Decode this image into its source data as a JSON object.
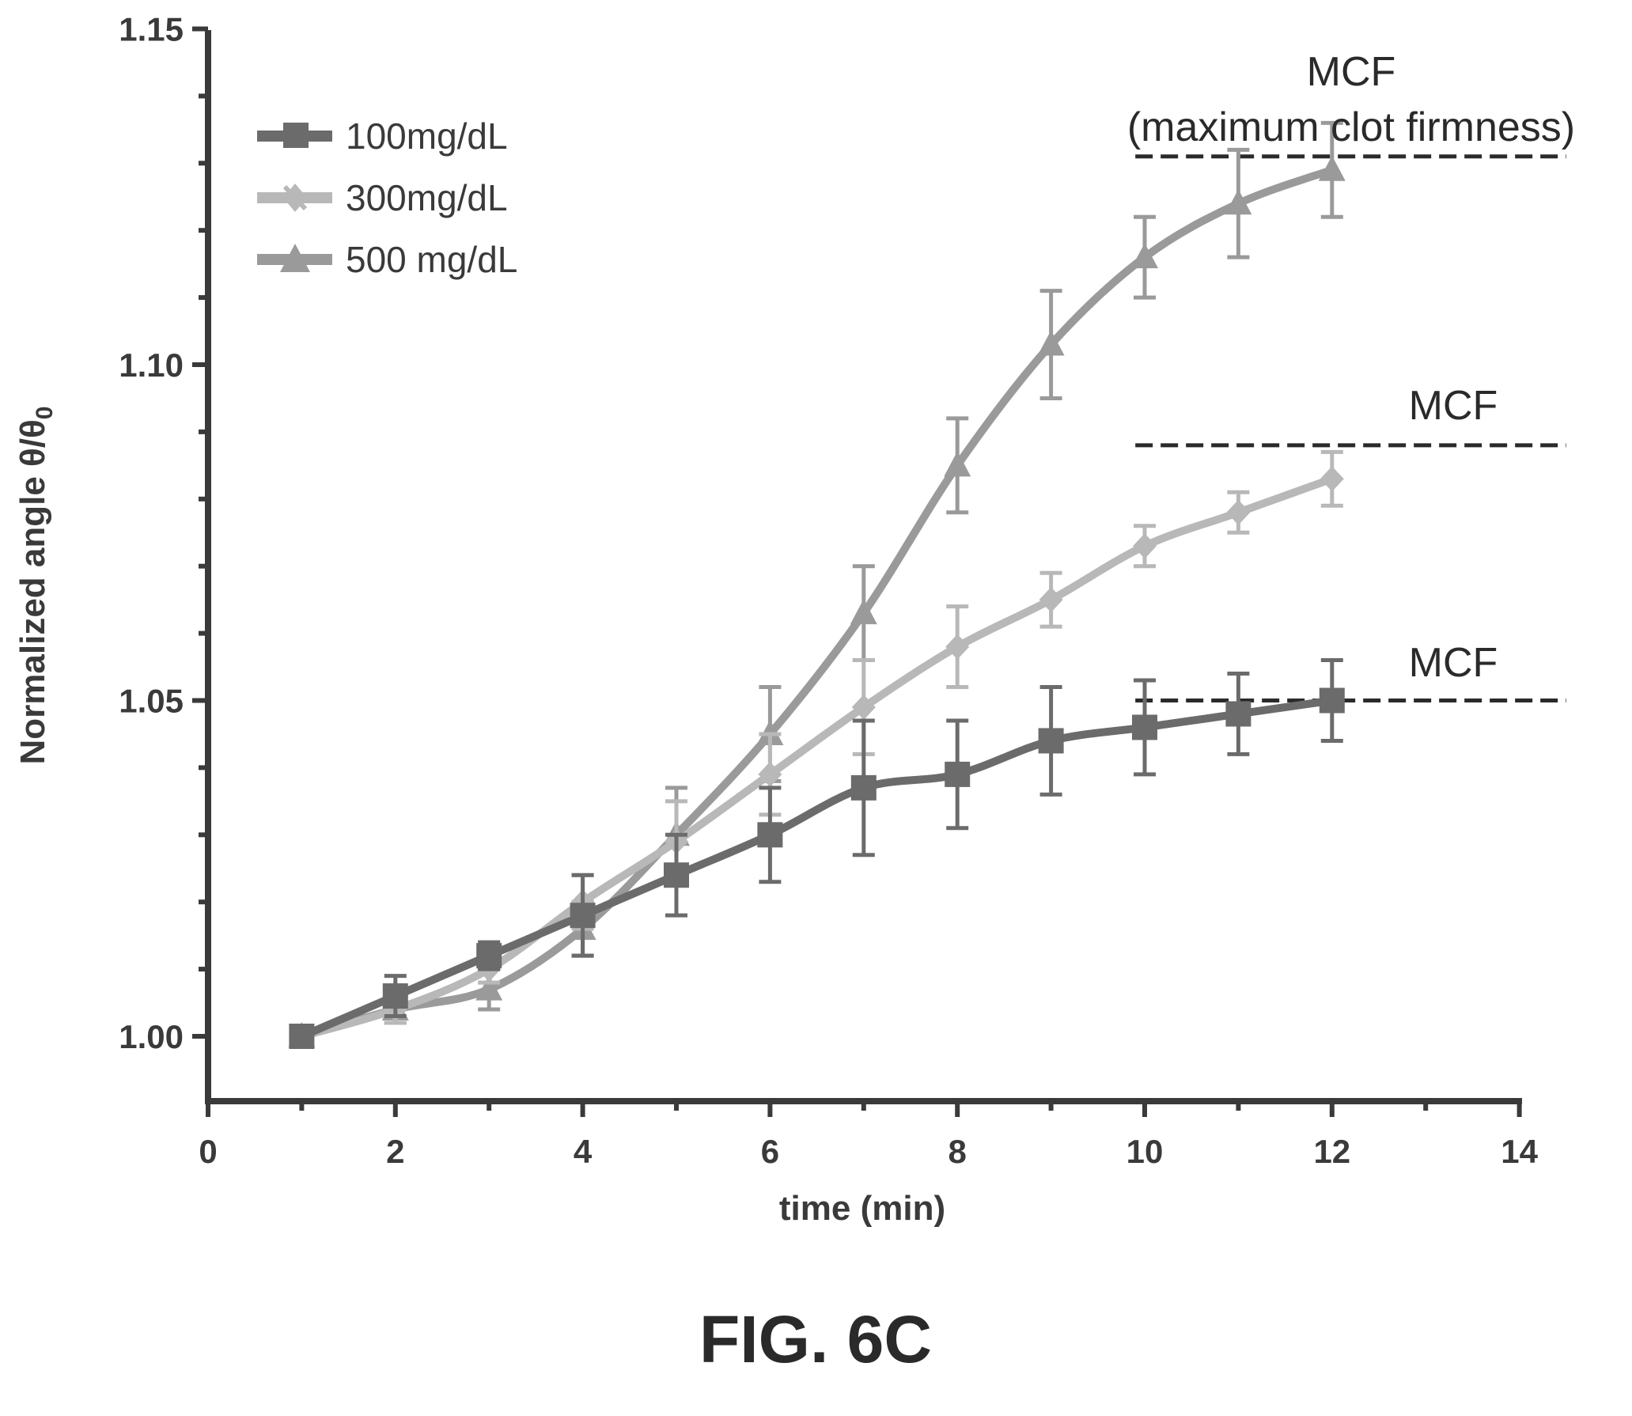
{
  "chart_data": {
    "type": "line",
    "xlabel": "time (min)",
    "ylabel_prefix": "Normalized angle θ/θ",
    "ylabel_subscript": "0",
    "xlim": [
      0,
      14
    ],
    "ylim": [
      0.99,
      1.15
    ],
    "x_ticks": [
      0,
      2,
      4,
      6,
      8,
      10,
      12,
      14
    ],
    "x_tick_labels": [
      "0",
      "2",
      "4",
      "6",
      "8",
      "10",
      "12",
      "14"
    ],
    "y_ticks": [
      1.0,
      1.05,
      1.1,
      1.15
    ],
    "y_tick_labels": [
      "1.00",
      "1.05",
      "1.10",
      "1.15"
    ],
    "grid": false,
    "legend_position": "top-left",
    "series": [
      {
        "name": "100mg/dL",
        "color": "#6b6b6b",
        "marker": "square",
        "x": [
          1,
          2,
          3,
          4,
          5,
          6,
          7,
          8,
          9,
          10,
          11,
          12
        ],
        "y": [
          1.0,
          1.006,
          1.012,
          1.018,
          1.024,
          1.03,
          1.037,
          1.039,
          1.044,
          1.046,
          1.048,
          1.05
        ],
        "err": [
          0.001,
          0.003,
          0.002,
          0.006,
          0.006,
          0.007,
          0.01,
          0.008,
          0.008,
          0.007,
          0.006,
          0.006
        ]
      },
      {
        "name": "300mg/dL",
        "color": "#b8b8b8",
        "marker": "star",
        "x": [
          1,
          2,
          3,
          4,
          5,
          6,
          7,
          8,
          9,
          10,
          11,
          12
        ],
        "y": [
          1.0,
          1.004,
          1.01,
          1.02,
          1.029,
          1.039,
          1.049,
          1.058,
          1.065,
          1.073,
          1.078,
          1.083
        ],
        "err": [
          0.001,
          0.002,
          0.002,
          0.004,
          0.006,
          0.006,
          0.007,
          0.006,
          0.004,
          0.003,
          0.003,
          0.004
        ]
      },
      {
        "name": "500 mg/dL",
        "color": "#9a9a9a",
        "marker": "triangle",
        "x": [
          1,
          2,
          3,
          4,
          5,
          6,
          7,
          8,
          9,
          10,
          11,
          12
        ],
        "y": [
          1.0,
          1.004,
          1.007,
          1.016,
          1.03,
          1.045,
          1.063,
          1.085,
          1.103,
          1.116,
          1.124,
          1.129
        ],
        "err": [
          0.001,
          0.002,
          0.003,
          0.004,
          0.007,
          0.007,
          0.007,
          0.007,
          0.008,
          0.006,
          0.008,
          0.007
        ]
      }
    ],
    "mcf_lines": [
      {
        "y": 1.131,
        "x_start": 9.9,
        "x_end": 14.5
      },
      {
        "y": 1.088,
        "x_start": 9.9,
        "x_end": 14.5
      },
      {
        "y": 1.05,
        "x_start": 9.9,
        "x_end": 14.5
      }
    ],
    "annotations": {
      "mcf_top_line1": "MCF",
      "mcf_top_line2": "(maximum clot firmness)",
      "mcf_middle": "MCF",
      "mcf_bottom": "MCF"
    }
  },
  "figure_caption": "FIG. 6C"
}
